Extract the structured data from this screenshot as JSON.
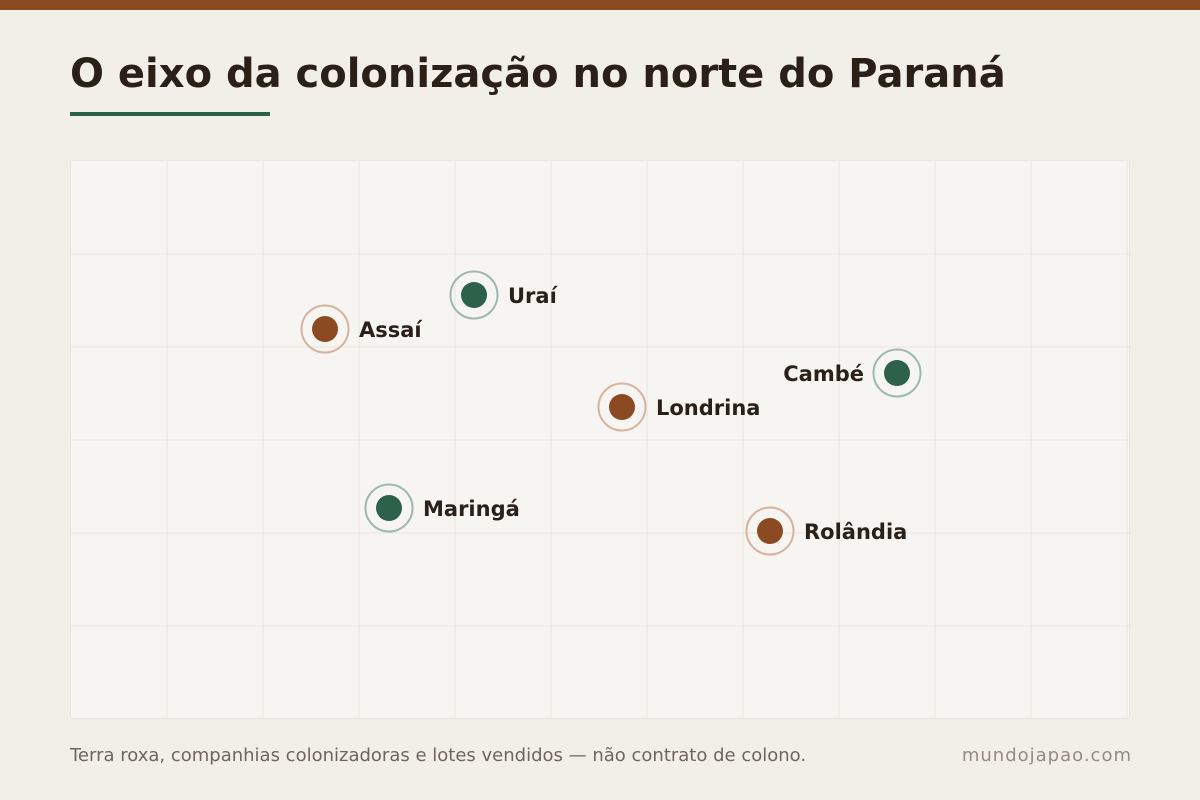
{
  "title": "O eixo da colonização no norte do Paraná",
  "footer": {
    "caption": "Terra roxa, companhias colonizadoras e lotes vendidos — não contrato de colono.",
    "site": "mundojapao.com"
  },
  "colors": {
    "top_bar": "#8b4a22",
    "accent_green": "#2d6149",
    "accent_brown": "#8b4a22",
    "background": "#f2efe9",
    "map_panel": "#f7f5f1",
    "grid": "#ebe7df"
  },
  "map": {
    "cities": [
      {
        "name": "Uraí",
        "marker_color": "green",
        "label_side": "right"
      },
      {
        "name": "Assaí",
        "marker_color": "brown",
        "label_side": "right"
      },
      {
        "name": "Cambé",
        "marker_color": "green",
        "label_side": "left"
      },
      {
        "name": "Londrina",
        "marker_color": "brown",
        "label_side": "right"
      },
      {
        "name": "Maringá",
        "marker_color": "green",
        "label_side": "right"
      },
      {
        "name": "Rolândia",
        "marker_color": "brown",
        "label_side": "right"
      }
    ]
  }
}
